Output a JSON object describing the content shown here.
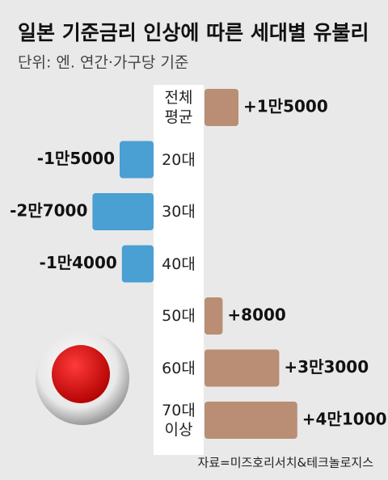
{
  "chart_data": {
    "type": "diverging-bar",
    "title": "일본 기준금리 인상에 따른 세대별 유불리",
    "subtitle": "단위: 엔. 연간·가구당 기준",
    "source": "자료=미즈호리서치&테크놀로지스",
    "categories": [
      "전체\n평균",
      "20대",
      "30대",
      "40대",
      "50대",
      "60대",
      "70대\n이상"
    ],
    "values": [
      15000,
      -15000,
      -27000,
      -14000,
      8000,
      33000,
      41000
    ],
    "value_labels": [
      "+1만5000",
      "-1만5000",
      "-2만7000",
      "-1만4000",
      "+8000",
      "+3만3000",
      "+4만1000"
    ],
    "positive_color": "#b98e74",
    "negative_color": "#4a9fd3"
  }
}
